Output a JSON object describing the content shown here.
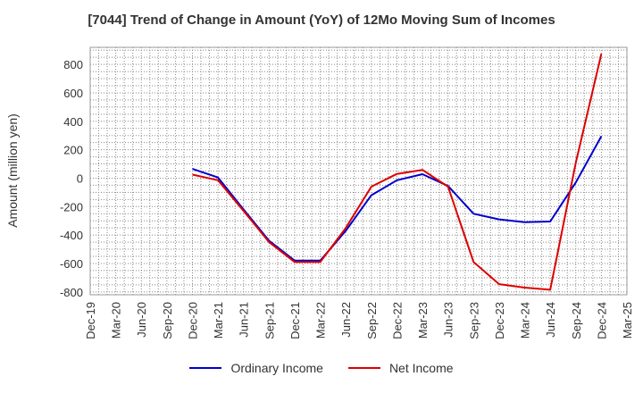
{
  "chart_data": {
    "type": "line",
    "title": "[7044]  Trend of Change in Amount (YoY) of 12Mo Moving Sum of Incomes",
    "ylabel": "Amount (million yen)",
    "xlabel": "",
    "categories": [
      "Dec-19",
      "Mar-20",
      "Jun-20",
      "Sep-20",
      "Dec-20",
      "Mar-21",
      "Jun-21",
      "Sep-21",
      "Dec-21",
      "Mar-22",
      "Jun-22",
      "Sep-22",
      "Dec-22",
      "Mar-23",
      "Jun-23",
      "Sep-23",
      "Dec-23",
      "Mar-24",
      "Jun-24",
      "Sep-24",
      "Dec-24",
      "Mar-25"
    ],
    "ylim": [
      -820,
      920
    ],
    "yticks": [
      -800,
      -600,
      -400,
      -200,
      0,
      200,
      400,
      600,
      800
    ],
    "grid": true,
    "legend_position": "bottom",
    "series": [
      {
        "name": "Ordinary Income",
        "color": "#0000cc",
        "values": [
          null,
          null,
          null,
          null,
          65,
          5,
          -220,
          -440,
          -580,
          -580,
          -370,
          -120,
          -15,
          28,
          -55,
          -250,
          -290,
          -310,
          -305,
          -30,
          295,
          null
        ]
      },
      {
        "name": "Net Income",
        "color": "#dd0000",
        "values": [
          null,
          null,
          null,
          null,
          25,
          -15,
          -230,
          -450,
          -590,
          -590,
          -350,
          -60,
          30,
          58,
          -60,
          -590,
          -745,
          -770,
          -785,
          110,
          875,
          null
        ]
      }
    ]
  }
}
